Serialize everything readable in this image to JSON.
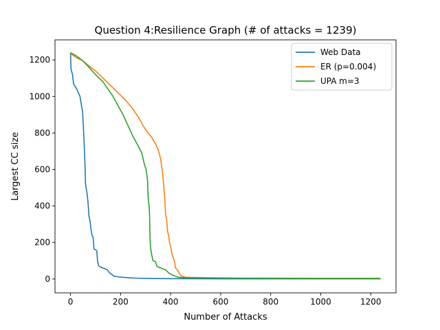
{
  "chart_data": {
    "type": "line",
    "title": "Question 4:Resilience Graph (# of attacks = 1239)",
    "xlabel": "Number of Attacks",
    "ylabel": "Largest CC size",
    "xlim": [
      -62,
      1301
    ],
    "ylim": [
      -76,
      1310
    ],
    "xticks": [
      0,
      200,
      400,
      600,
      800,
      1000,
      1200
    ],
    "yticks": [
      0,
      200,
      400,
      600,
      800,
      1000,
      1200
    ],
    "grid": false,
    "legend_position": "top-right",
    "series": [
      {
        "name": "Web Data",
        "color": "#1f77b4",
        "points": [
          [
            0,
            1239
          ],
          [
            2,
            1150
          ],
          [
            8,
            1120
          ],
          [
            12,
            1070
          ],
          [
            25,
            1040
          ],
          [
            38,
            1000
          ],
          [
            45,
            940
          ],
          [
            48,
            920
          ],
          [
            52,
            820
          ],
          [
            56,
            700
          ],
          [
            58,
            620
          ],
          [
            60,
            520
          ],
          [
            66,
            470
          ],
          [
            70,
            420
          ],
          [
            74,
            340
          ],
          [
            78,
            320
          ],
          [
            82,
            270
          ],
          [
            86,
            240
          ],
          [
            90,
            230
          ],
          [
            94,
            165
          ],
          [
            100,
            160
          ],
          [
            105,
            155
          ],
          [
            108,
            100
          ],
          [
            112,
            75
          ],
          [
            120,
            65
          ],
          [
            130,
            60
          ],
          [
            140,
            55
          ],
          [
            148,
            50
          ],
          [
            155,
            35
          ],
          [
            165,
            25
          ],
          [
            175,
            15
          ],
          [
            190,
            12
          ],
          [
            220,
            8
          ],
          [
            260,
            5
          ],
          [
            320,
            3
          ],
          [
            400,
            2
          ],
          [
            600,
            1
          ],
          [
            1239,
            1
          ]
        ]
      },
      {
        "name": "ER (p=0.004)",
        "color": "#ff7f0e",
        "points": [
          [
            0,
            1236
          ],
          [
            20,
            1215
          ],
          [
            50,
            1195
          ],
          [
            80,
            1160
          ],
          [
            100,
            1140
          ],
          [
            130,
            1100
          ],
          [
            160,
            1060
          ],
          [
            190,
            1020
          ],
          [
            220,
            980
          ],
          [
            250,
            930
          ],
          [
            270,
            890
          ],
          [
            290,
            840
          ],
          [
            310,
            800
          ],
          [
            325,
            775
          ],
          [
            340,
            740
          ],
          [
            350,
            710
          ],
          [
            360,
            660
          ],
          [
            368,
            580
          ],
          [
            372,
            520
          ],
          [
            376,
            460
          ],
          [
            380,
            350
          ],
          [
            384,
            330
          ],
          [
            388,
            260
          ],
          [
            392,
            240
          ],
          [
            396,
            200
          ],
          [
            400,
            180
          ],
          [
            405,
            140
          ],
          [
            410,
            120
          ],
          [
            415,
            100
          ],
          [
            420,
            60
          ],
          [
            428,
            50
          ],
          [
            435,
            30
          ],
          [
            445,
            15
          ],
          [
            460,
            10
          ],
          [
            500,
            8
          ],
          [
            600,
            6
          ],
          [
            700,
            5
          ],
          [
            1000,
            4
          ],
          [
            1239,
            4
          ]
        ]
      },
      {
        "name": "UPA m=3",
        "color": "#2ca02c",
        "points": [
          [
            0,
            1240
          ],
          [
            20,
            1225
          ],
          [
            50,
            1195
          ],
          [
            80,
            1150
          ],
          [
            100,
            1120
          ],
          [
            130,
            1080
          ],
          [
            150,
            1040
          ],
          [
            170,
            1000
          ],
          [
            190,
            950
          ],
          [
            210,
            900
          ],
          [
            230,
            840
          ],
          [
            250,
            780
          ],
          [
            270,
            730
          ],
          [
            285,
            690
          ],
          [
            295,
            630
          ],
          [
            302,
            600
          ],
          [
            308,
            540
          ],
          [
            310,
            450
          ],
          [
            314,
            400
          ],
          [
            316,
            350
          ],
          [
            318,
            220
          ],
          [
            320,
            170
          ],
          [
            325,
            130
          ],
          [
            330,
            100
          ],
          [
            340,
            95
          ],
          [
            345,
            70
          ],
          [
            360,
            60
          ],
          [
            380,
            50
          ],
          [
            395,
            30
          ],
          [
            410,
            20
          ],
          [
            430,
            10
          ],
          [
            470,
            6
          ],
          [
            550,
            5
          ],
          [
            700,
            4
          ],
          [
            1000,
            3
          ],
          [
            1239,
            3
          ]
        ]
      }
    ]
  }
}
